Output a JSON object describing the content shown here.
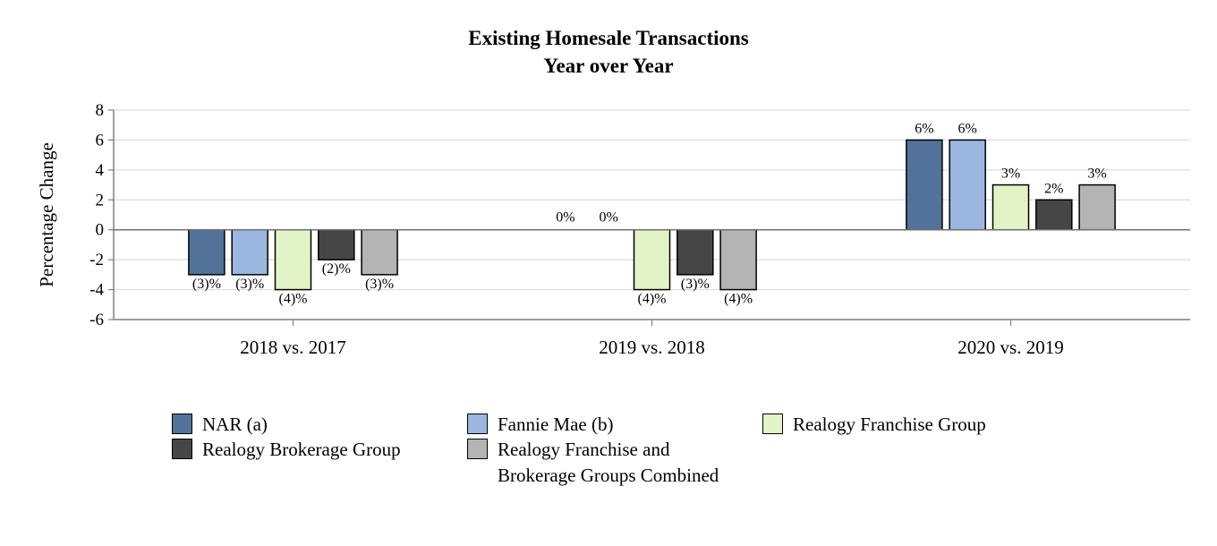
{
  "chart_data": {
    "type": "bar",
    "title": [
      "Existing Homesale Transactions",
      "Year over Year"
    ],
    "xlabel": "",
    "ylabel": "Percentage Change",
    "ylim": [
      -6,
      8
    ],
    "yticks": [
      8,
      6,
      4,
      2,
      0,
      -2,
      -4,
      -6
    ],
    "ytick_labels": [
      "8",
      "6",
      "4",
      "2",
      "0",
      "-2",
      "-4",
      "-6"
    ],
    "grid": true,
    "categories": [
      "2018 vs. 2017",
      "2019 vs. 2018",
      "2020 vs. 2019"
    ],
    "series": [
      {
        "name": "NAR (a)",
        "color": "#53729a",
        "values": [
          -3,
          0,
          6
        ],
        "labels": [
          "(3)%",
          "0%",
          "6%"
        ]
      },
      {
        "name": "Fannie Mae (b)",
        "color": "#9bb7e0",
        "values": [
          -3,
          0,
          6
        ],
        "labels": [
          "(3)%",
          "0%",
          "6%"
        ]
      },
      {
        "name": "Realogy Franchise Group",
        "color": "#e2f4c6",
        "values": [
          -4,
          -4,
          3
        ],
        "labels": [
          "(4)%",
          "(4)%",
          "3%"
        ]
      },
      {
        "name": "Realogy Brokerage Group",
        "color": "#464646",
        "values": [
          -2,
          -3,
          2
        ],
        "labels": [
          "(2)%",
          "(3)%",
          "2%"
        ]
      },
      {
        "name": "Realogy Franchise and Brokerage Groups Combined",
        "color": "#b4b4b4",
        "values": [
          -3,
          -4,
          3
        ],
        "labels": [
          "(3)%",
          "(4)%",
          "3%"
        ]
      }
    ],
    "legend": {
      "placement": "bottom",
      "items": [
        {
          "lines": [
            "NAR (a)"
          ],
          "color": "#53729a"
        },
        {
          "lines": [
            "Fannie Mae (b)"
          ],
          "color": "#9bb7e0"
        },
        {
          "lines": [
            "Realogy Franchise Group"
          ],
          "color": "#e2f4c6"
        },
        {
          "lines": [
            "Realogy Brokerage Group"
          ],
          "color": "#464646"
        },
        {
          "lines": [
            "Realogy Franchise and",
            "Brokerage Groups Combined"
          ],
          "color": "#b4b4b4"
        }
      ]
    }
  }
}
